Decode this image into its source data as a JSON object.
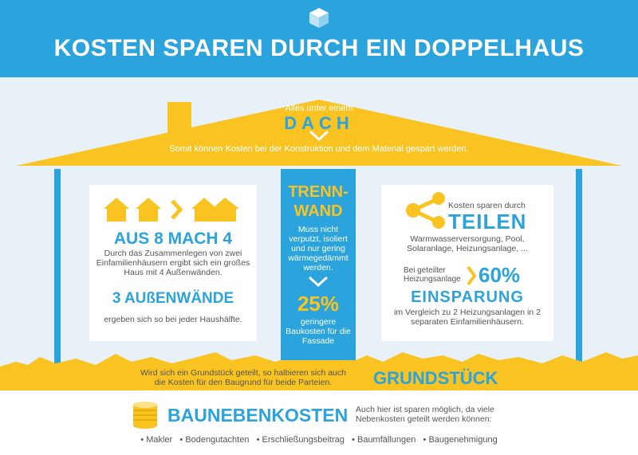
{
  "header": {
    "title": "KOSTEN SPAREN DURCH EIN DOPPELHAUS"
  },
  "roof": {
    "small": "Alles unter einem",
    "big": "DACH",
    "text": "Somit können Kosten bei der Konstruktion und dem Material gespart werden."
  },
  "left_card": {
    "headline": "AUS 8 MACH 4",
    "text": "Durch das Zusammenlegen von zwei Einfamilienhäusern ergibt sich ein großes Haus mit 4 Außenwänden.",
    "headline2": "3 AUßENWÄNDE",
    "text2": "ergeben sich so bei jeder Haushälfte."
  },
  "center_col": {
    "title1": "TRENN-",
    "title2": "WAND",
    "text": "Muss nicht verputzt, isoliert und nur gering wärmegedämmt werden.",
    "percent": "25%",
    "text2": "geringere Baukosten für die Fassade"
  },
  "right_card": {
    "small": "Kosten sparen durch",
    "big": "TEILEN",
    "list": "Warmwasserversorgung, Pool, Solaranlage, Heizungsanlage, ...",
    "label": "Bei geteilter Heizungsanlage",
    "percent": "60%",
    "headline": "EINSPARUNG",
    "text": "im Vergleich zu 2 Heizungsanlagen in 2 separaten Einfamilienhäusern."
  },
  "ground": {
    "text": "Wird sich ein  Grundstück geteilt, so halbieren sich auch die Kosten für den Baugrund für beide Parteien.",
    "label": "GRUNDSTÜCK"
  },
  "bottom": {
    "title": "BAUNEBENKOSTEN",
    "text": "Auch hier ist sparen möglich, da viele Nebenkosten geteilt werden können:",
    "items": [
      "Makler",
      "Bodengutachten",
      "Erschließungsbeitrag",
      "Baumfällungen",
      "Baugenehmigung"
    ]
  },
  "colors": {
    "blue": "#2ba3dc",
    "yellow": "#f9c322",
    "background": "#e7f1f7"
  }
}
